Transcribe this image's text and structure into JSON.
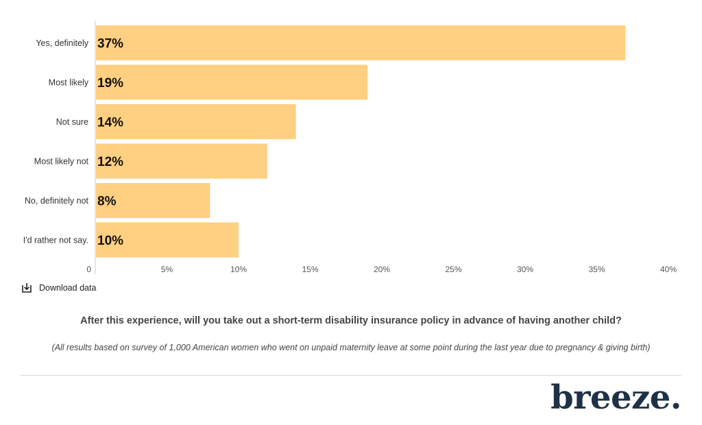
{
  "chart_data": {
    "type": "bar",
    "orientation": "horizontal",
    "categories": [
      "Yes, definitely",
      "Most likely",
      "Not sure",
      "Most likely not",
      "No, definitely not",
      "I'd rather not say."
    ],
    "values": [
      37,
      19,
      14,
      12,
      8,
      10
    ],
    "data_labels": [
      "37%",
      "19%",
      "14%",
      "12%",
      "8%",
      "10%"
    ],
    "xlim": [
      0,
      40
    ],
    "xticks": [
      0,
      5,
      10,
      15,
      20,
      25,
      30,
      35,
      40
    ],
    "xtick_labels": [
      "0",
      "5%",
      "10%",
      "15%",
      "20%",
      "25%",
      "30%",
      "35%",
      "40%"
    ],
    "bar_color": "#ffcf82",
    "grid": false
  },
  "download": {
    "label": "Download data",
    "icon": "download-icon"
  },
  "question": "After this experience, will you take out a short-term disability insurance policy in advance of having another child?",
  "note": "(All results based on survey of 1,000 American women who went on unpaid maternity leave at some point during the last year due to pregnancy & giving birth)",
  "brand": "breeze."
}
